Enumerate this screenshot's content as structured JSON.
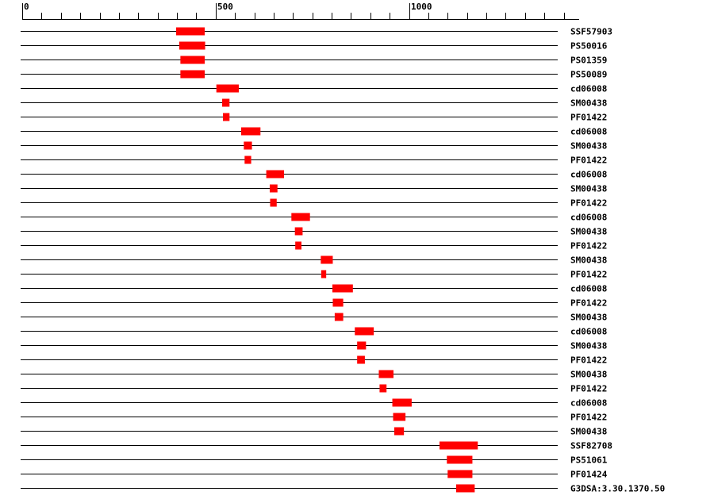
{
  "ruler": {
    "ticks": [
      0,
      500,
      1000
    ],
    "minor_step": 50,
    "range": [
      0,
      1440
    ]
  },
  "colors": {
    "domain": "#ff0000",
    "line": "#000000",
    "background": "#ffffff"
  },
  "tracks": [
    {
      "label": "SSF57903",
      "start": 398,
      "end": 472
    },
    {
      "label": "PS50016",
      "start": 406,
      "end": 473
    },
    {
      "label": "PS01359",
      "start": 409,
      "end": 472
    },
    {
      "label": "PS50089",
      "start": 409,
      "end": 472
    },
    {
      "label": "cd06008",
      "start": 502,
      "end": 560
    },
    {
      "label": "SM00438",
      "start": 517,
      "end": 536
    },
    {
      "label": "PF01422",
      "start": 519,
      "end": 536
    },
    {
      "label": "cd06008",
      "start": 566,
      "end": 616
    },
    {
      "label": "SM00438",
      "start": 573,
      "end": 594
    },
    {
      "label": "PF01422",
      "start": 575,
      "end": 592
    },
    {
      "label": "cd06008",
      "start": 631,
      "end": 677
    },
    {
      "label": "SM00438",
      "start": 640,
      "end": 660
    },
    {
      "label": "PF01422",
      "start": 641,
      "end": 658
    },
    {
      "label": "cd06008",
      "start": 696,
      "end": 744
    },
    {
      "label": "SM00438",
      "start": 705,
      "end": 725
    },
    {
      "label": "PF01422",
      "start": 706,
      "end": 722
    },
    {
      "label": "SM00438",
      "start": 772,
      "end": 803
    },
    {
      "label": "PF01422",
      "start": 773,
      "end": 786
    },
    {
      "label": "cd06008",
      "start": 802,
      "end": 855
    },
    {
      "label": "PF01422",
      "start": 803,
      "end": 830
    },
    {
      "label": "SM00438",
      "start": 808,
      "end": 830
    },
    {
      "label": "cd06008",
      "start": 860,
      "end": 909
    },
    {
      "label": "SM00438",
      "start": 866,
      "end": 889
    },
    {
      "label": "PF01422",
      "start": 866,
      "end": 886
    },
    {
      "label": "SM00438",
      "start": 922,
      "end": 960
    },
    {
      "label": "PF01422",
      "start": 924,
      "end": 942
    },
    {
      "label": "cd06008",
      "start": 957,
      "end": 1007
    },
    {
      "label": "PF01422",
      "start": 959,
      "end": 991
    },
    {
      "label": "SM00438",
      "start": 962,
      "end": 987
    },
    {
      "label": "SSF82708",
      "start": 1079,
      "end": 1178
    },
    {
      "label": "PS51061",
      "start": 1098,
      "end": 1164
    },
    {
      "label": "PF01424",
      "start": 1100,
      "end": 1164
    },
    {
      "label": "G3DSA:3.30.1370.50",
      "start": 1122,
      "end": 1170
    }
  ]
}
